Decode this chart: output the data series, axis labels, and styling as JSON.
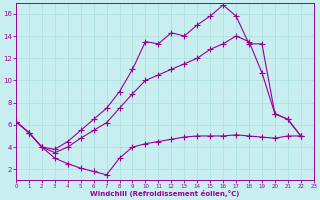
{
  "xlabel": "Windchill (Refroidissement éolien,°C)",
  "bg_color": "#c8eef0",
  "line_color": "#990099",
  "xlim": [
    0,
    23
  ],
  "ylim": [
    1.0,
    17.0
  ],
  "xticks": [
    0,
    1,
    2,
    3,
    4,
    5,
    6,
    7,
    8,
    9,
    10,
    11,
    12,
    13,
    14,
    15,
    16,
    17,
    18,
    19,
    20,
    21,
    22,
    23
  ],
  "yticks": [
    2,
    4,
    6,
    8,
    10,
    12,
    14,
    16
  ],
  "top_x": [
    0,
    1,
    2,
    3,
    4,
    5,
    6,
    7,
    8,
    9,
    10,
    11,
    12,
    13,
    14,
    15,
    16,
    17,
    18,
    19,
    20,
    21,
    22
  ],
  "top_y": [
    6.3,
    5.3,
    4.0,
    3.8,
    4.5,
    5.5,
    6.5,
    7.5,
    9.0,
    11.0,
    13.5,
    13.3,
    14.3,
    14.0,
    15.0,
    15.8,
    16.8,
    15.8,
    13.3,
    13.3,
    7.0,
    6.5,
    5.0
  ],
  "mid_x": [
    0,
    1,
    2,
    3,
    4,
    5,
    6,
    7,
    8,
    9,
    10,
    11,
    12,
    13,
    14,
    15,
    16,
    17,
    18,
    19,
    20,
    21,
    22
  ],
  "mid_y": [
    6.3,
    5.3,
    4.0,
    3.5,
    4.0,
    4.8,
    5.5,
    6.2,
    7.5,
    8.8,
    10.0,
    10.5,
    11.0,
    11.5,
    12.0,
    12.8,
    13.3,
    14.0,
    13.5,
    10.7,
    7.0,
    6.5,
    5.0
  ],
  "bot_x": [
    0,
    1,
    2,
    3,
    4,
    5,
    6,
    7,
    8,
    9,
    10,
    11,
    12,
    13,
    14,
    15,
    16,
    17,
    18,
    19,
    20,
    21,
    22
  ],
  "bot_y": [
    6.3,
    5.3,
    4.0,
    3.0,
    2.5,
    2.1,
    1.8,
    1.5,
    3.0,
    4.0,
    4.3,
    4.5,
    4.7,
    4.9,
    5.0,
    5.0,
    5.0,
    5.1,
    5.0,
    4.9,
    4.8,
    5.0,
    5.0
  ]
}
